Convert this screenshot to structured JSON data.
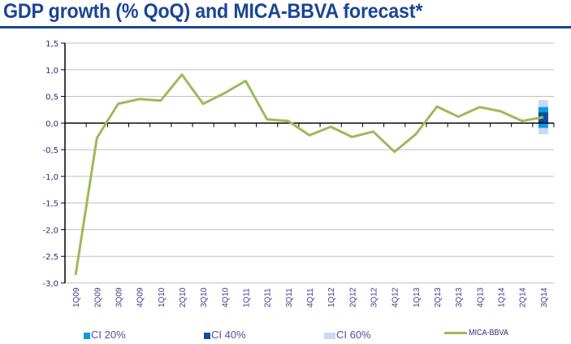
{
  "title": "GDP growth (% QoQ) and MICA-BBVA forecast*",
  "colors": {
    "title": "#1a4595",
    "line": "#9bbb59",
    "ci20": "#0a9be0",
    "ci40": "#0b4f9e",
    "ci60": "#c9d9f1",
    "grid": "#c0c0c0",
    "axis": "#000000"
  },
  "chart_data": {
    "type": "line",
    "title": "GDP growth (% QoQ) and MICA-BBVA forecast*",
    "xlabel": "",
    "ylabel": "",
    "ylim": [
      -3.0,
      1.5
    ],
    "yticks": [
      1.5,
      1.0,
      0.5,
      0.0,
      -0.5,
      -1.0,
      -1.5,
      -2.0,
      -2.5,
      -3.0
    ],
    "ytick_labels": [
      "1,5",
      "1,0",
      "0,5",
      "0,0",
      "-0,5",
      "-1,0",
      "-1,5",
      "-2,0",
      "-2,5",
      "-3,0"
    ],
    "grid": true,
    "categories": [
      "1Q09",
      "2Q09",
      "3Q09",
      "4Q09",
      "1Q10",
      "2Q10",
      "3Q10",
      "4Q10",
      "1Q11",
      "2Q11",
      "3Q11",
      "4Q11",
      "1Q12",
      "2Q12",
      "3Q12",
      "4Q12",
      "1Q13",
      "2Q13",
      "3Q13",
      "4Q13",
      "1Q14",
      "2Q14",
      "3Q14"
    ],
    "series": [
      {
        "name": "MICA-BBVA",
        "values": [
          -2.85,
          -0.28,
          0.36,
          0.45,
          0.42,
          0.91,
          0.36,
          0.56,
          0.79,
          0.07,
          0.04,
          -0.23,
          -0.07,
          -0.26,
          -0.16,
          -0.54,
          -0.21,
          0.31,
          0.12,
          0.3,
          0.22,
          0.04,
          0.11
        ]
      }
    ],
    "confidence_intervals": {
      "category": "3Q14",
      "bands": [
        {
          "name": "CI 60%",
          "low": -0.21,
          "high": 0.43
        },
        {
          "name": "CI 40%",
          "low": -0.09,
          "high": 0.3
        },
        {
          "name": "CI 20%",
          "low": 0.0,
          "high": 0.2
        }
      ]
    },
    "legend": {
      "placement": "bottom",
      "entries": [
        "CI 20%",
        "CI 40%",
        "CI 60%",
        "MICA-BBVA"
      ]
    }
  }
}
